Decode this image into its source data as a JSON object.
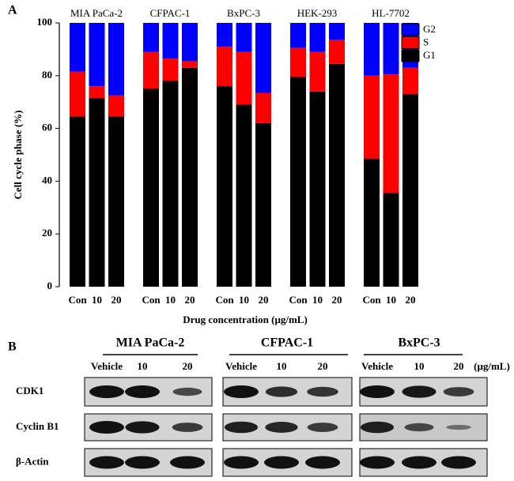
{
  "panel_a": {
    "label": "A"
  },
  "chart_data": {
    "type": "bar",
    "stacked": true,
    "ylabel": "Cell cycle phase (%)",
    "xlabel": "Drug concentration (μg/mL)",
    "groups": [
      "MIA PaCa-2",
      "CFPAC-1",
      "BxPC-3",
      "HEK-293",
      "HL-7702"
    ],
    "categories": [
      "Con",
      "10",
      "20",
      "Con",
      "10",
      "20",
      "Con",
      "10",
      "20",
      "Con",
      "10",
      "20",
      "Con",
      "10",
      "20"
    ],
    "series": [
      {
        "name": "G1",
        "color": "#000000",
        "values": [
          64.5,
          71.5,
          64.5,
          75,
          78,
          83,
          76,
          69,
          62,
          79.5,
          74,
          84.5,
          48.5,
          35.5,
          73
        ]
      },
      {
        "name": "S",
        "color": "#ff0000",
        "values": [
          17,
          4.5,
          8,
          14,
          8.5,
          2.5,
          15,
          20,
          11.5,
          11,
          15,
          9,
          31.5,
          45,
          10
        ]
      },
      {
        "name": "G2",
        "color": "#0000ff",
        "values": [
          18.5,
          24,
          27.5,
          11,
          13.5,
          14.5,
          9,
          11,
          26.5,
          9.5,
          11,
          6.5,
          20,
          19.5,
          17
        ]
      }
    ],
    "ylim": [
      0,
      100
    ],
    "yticks": [
      0,
      20,
      40,
      60,
      80,
      100
    ],
    "legend": "upper right"
  },
  "panel_b": {
    "label": "B",
    "unit": "(μg/mL)",
    "groups": [
      {
        "name": "MIA PaCa-2",
        "lanes": [
          "Vehicle",
          "10",
          "20"
        ]
      },
      {
        "name": "CFPAC-1",
        "lanes": [
          "Vehicle",
          "10",
          "20"
        ]
      },
      {
        "name": "BxPC-3",
        "lanes": [
          "Vehicle",
          "10",
          "20"
        ]
      }
    ],
    "rows": [
      "CDK1",
      "Cyclin B1",
      "β-Actin"
    ]
  }
}
